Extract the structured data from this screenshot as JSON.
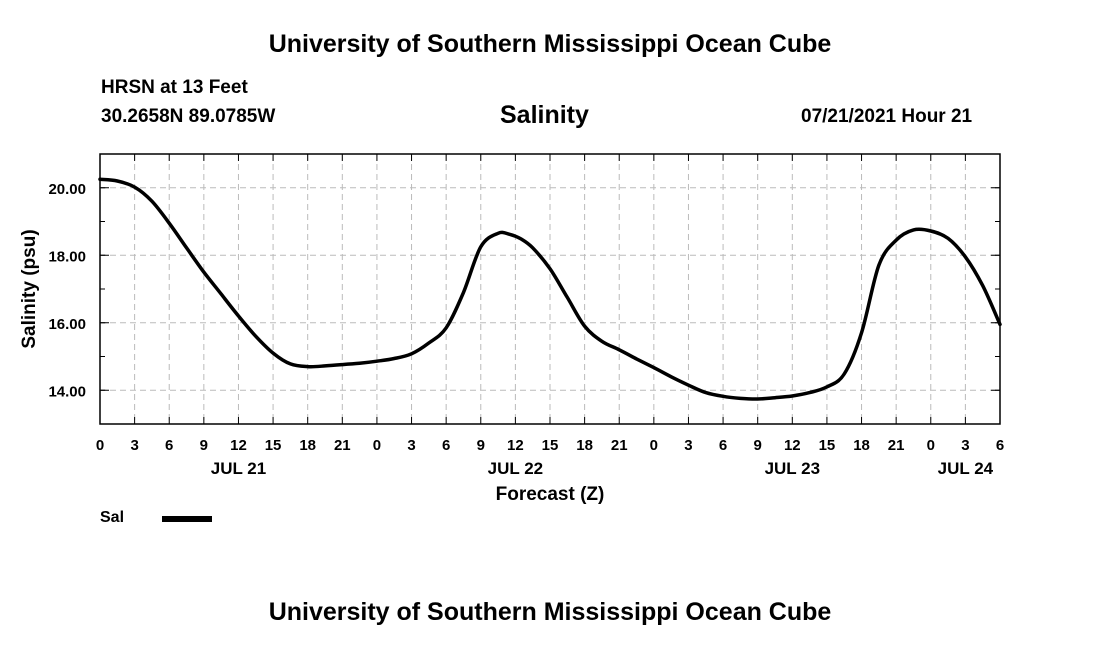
{
  "header": {
    "institution": "University of Southern Mississippi Ocean Cube",
    "station": "HRSN at 13 Feet",
    "coordinates": "30.2658N  89.0785W",
    "datetime": "07/21/2021 Hour 21"
  },
  "footer": {
    "institution": "University of Southern Mississippi Ocean Cube"
  },
  "legend": {
    "label": "Sal"
  },
  "chart_data": {
    "type": "line",
    "title": "Salinity",
    "xlabel": "Forecast (Z)",
    "ylabel": "Salinity (psu)",
    "x_unit": "hours since JUL 21 00Z",
    "xlim": [
      0,
      78
    ],
    "ylim": [
      13.0,
      21.0
    ],
    "grid": true,
    "x_tick_labels": [
      "0",
      "3",
      "6",
      "9",
      "12",
      "15",
      "18",
      "21",
      "0",
      "3",
      "6",
      "9",
      "12",
      "15",
      "18",
      "21",
      "0",
      "3",
      "6",
      "9",
      "12",
      "15",
      "18",
      "21",
      "0",
      "3",
      "6"
    ],
    "y_ticks": [
      14.0,
      16.0,
      18.0,
      20.0
    ],
    "y_tick_labels": [
      "14.00",
      "16.00",
      "18.00",
      "20.00"
    ],
    "date_labels": [
      {
        "label": "JUL 21",
        "hour": 12
      },
      {
        "label": "JUL 22",
        "hour": 36
      },
      {
        "label": "JUL 23",
        "hour": 60
      },
      {
        "label": "JUL 24",
        "hour": 75
      }
    ],
    "series": [
      {
        "name": "Sal",
        "x": [
          0,
          1.5,
          3,
          4.5,
          6,
          7.5,
          9,
          10.5,
          12,
          13.5,
          15,
          16.5,
          18,
          19.5,
          21,
          22.5,
          24,
          25.5,
          27,
          28.5,
          30,
          31.5,
          33,
          34.5,
          35.5,
          36.5,
          37.5,
          39,
          40.5,
          42,
          43.5,
          45,
          46.5,
          48,
          49.5,
          51,
          52.5,
          54,
          55.5,
          57,
          58.5,
          60,
          61.5,
          63,
          64.5,
          66,
          67.5,
          69,
          70.5,
          72,
          73.5,
          75,
          76.5,
          78
        ],
        "values": [
          20.25,
          20.2,
          20.02,
          19.6,
          18.95,
          18.22,
          17.5,
          16.85,
          16.2,
          15.6,
          15.1,
          14.78,
          14.7,
          14.72,
          14.76,
          14.8,
          14.86,
          14.94,
          15.08,
          15.4,
          15.85,
          16.9,
          18.25,
          18.65,
          18.62,
          18.48,
          18.22,
          17.6,
          16.75,
          15.9,
          15.45,
          15.2,
          14.93,
          14.67,
          14.4,
          14.15,
          13.93,
          13.82,
          13.76,
          13.74,
          13.78,
          13.83,
          13.93,
          14.1,
          14.48,
          15.7,
          17.7,
          18.45,
          18.75,
          18.72,
          18.5,
          17.95,
          17.1,
          15.95
        ]
      }
    ]
  }
}
